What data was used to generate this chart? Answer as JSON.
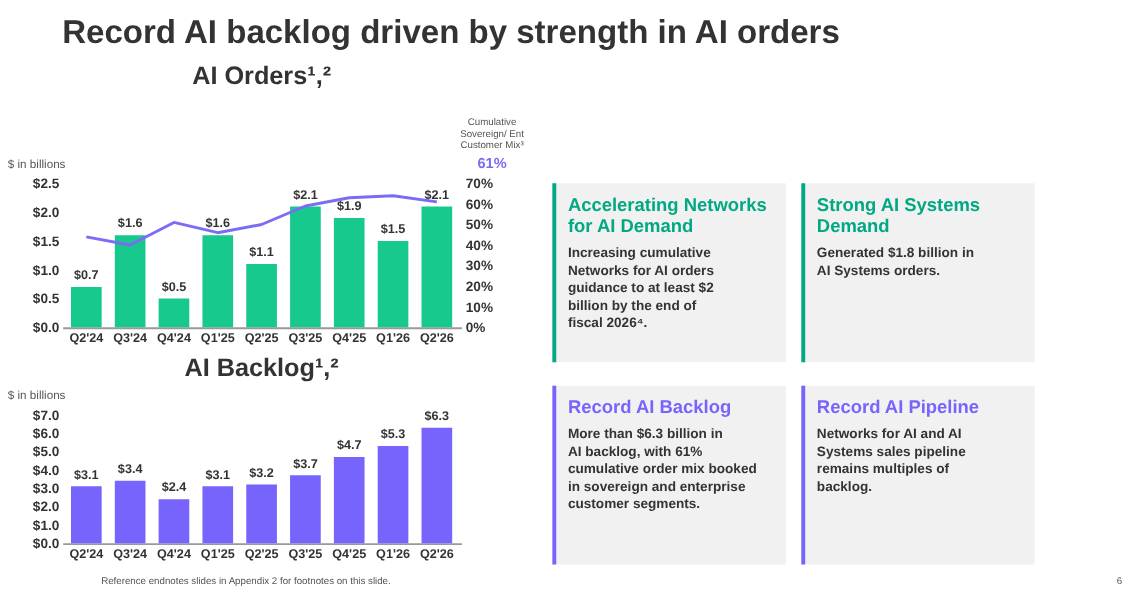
{
  "chart_data": [
    {
      "type": "other",
      "title": "Record AI backlog driven by strength in AI orders"
    },
    {
      "type": "bar",
      "title": "AI Orders¹,²",
      "ylabel": "$ in billions",
      "y2label": "Cumulative Sovereign/ Ent Customer Mix³",
      "categories": [
        "Q2'24",
        "Q3'24",
        "Q4'24",
        "Q1'25",
        "Q2'25",
        "Q3'25",
        "Q4'25",
        "Q1'26",
        "Q2'26"
      ],
      "series": [
        {
          "type": "bar",
          "color": "#17c98c",
          "values": [
            0.7,
            1.6,
            0.5,
            1.6,
            1.1,
            2.1,
            1.9,
            1.5,
            2.1
          ],
          "value_labels": [
            "$0.7",
            "$1.6",
            "$0.5",
            "$1.6",
            "$1.1",
            "$2.1",
            "$1.9",
            "$1.5",
            "$2.1"
          ]
        },
        {
          "type": "line",
          "axis": "y2",
          "color": "#7b6cf6",
          "values": [
            44,
            40,
            51,
            46,
            50,
            59,
            63,
            64,
            61
          ]
        }
      ],
      "ylim": [
        0,
        2.5
      ],
      "yticks": [
        {
          "value": 0,
          "label": "$0.0"
        },
        {
          "value": 0.5,
          "label": "$0.5"
        },
        {
          "value": 1,
          "label": "$1.0"
        },
        {
          "value": 1.5,
          "label": "$1.5"
        },
        {
          "value": 2,
          "label": "$2.0"
        },
        {
          "value": 2.5,
          "label": "$2.5"
        }
      ],
      "y2lim": [
        0,
        70
      ],
      "y2ticks": [
        {
          "value": 0,
          "label": "0%"
        },
        {
          "value": 10,
          "label": "10%"
        },
        {
          "value": 20,
          "label": "20%"
        },
        {
          "value": 30,
          "label": "30%"
        },
        {
          "value": 40,
          "label": "40%"
        },
        {
          "value": 50,
          "label": "50%"
        },
        {
          "value": 60,
          "label": "60%"
        },
        {
          "value": 70,
          "label": "70%"
        }
      ],
      "annotations": [
        "61%"
      ],
      "grid": false,
      "marker": "none"
    },
    {
      "type": "other",
      "title": "Accelerating Networks for AI Demand",
      "color": "#01a982",
      "annotations": [
        "Increasing cumulative Networks for AI orders guidance to at least $2 billion by the end of fiscal 2026⁴."
      ]
    },
    {
      "type": "other",
      "title": "Strong AI Systems Demand",
      "color": "#01a982",
      "annotations": [
        "Generated $1.8 billion in AI Systems orders."
      ]
    },
    {
      "type": "bar",
      "title": "AI Backlog¹,²",
      "ylabel": "$ in billions",
      "categories": [
        "Q2'24",
        "Q3'24",
        "Q4'24",
        "Q1'25",
        "Q2'25",
        "Q3'25",
        "Q4'25",
        "Q1'26",
        "Q2'26"
      ],
      "series": [
        {
          "type": "bar",
          "color": "#7764fc",
          "values": [
            3.1,
            3.4,
            2.4,
            3.1,
            3.2,
            3.7,
            4.7,
            5.3,
            6.3
          ],
          "value_labels": [
            "$3.1",
            "$3.4",
            "$2.4",
            "$3.1",
            "$3.2",
            "$3.7",
            "$4.7",
            "$5.3",
            "$6.3"
          ]
        }
      ],
      "ylim": [
        0,
        7
      ],
      "yticks": [
        {
          "value": 0,
          "label": "$0.0"
        },
        {
          "value": 1,
          "label": "$1.0"
        },
        {
          "value": 2,
          "label": "$2.0"
        },
        {
          "value": 3,
          "label": "$3.0"
        },
        {
          "value": 4,
          "label": "$4.0"
        },
        {
          "value": 5,
          "label": "$5.0"
        },
        {
          "value": 6,
          "label": "$6.0"
        },
        {
          "value": 7,
          "label": "$7.0"
        }
      ],
      "grid": false
    },
    {
      "type": "other",
      "title": "Record AI Backlog",
      "color": "#7764fc",
      "annotations": [
        "More than $6.3 billion in AI backlog, with 61% cumulative order mix booked in sovereign and enterprise customer segments."
      ]
    },
    {
      "type": "other",
      "title": "Record AI Pipeline",
      "color": "#7764fc",
      "annotations": [
        "Networks for AI and AI Systems sales pipeline remains multiples of backlog."
      ]
    },
    {
      "type": "other",
      "annotations": [
        "Reference endnotes slides in Appendix 2 for footnotes on this slide.",
        "6"
      ]
    }
  ]
}
